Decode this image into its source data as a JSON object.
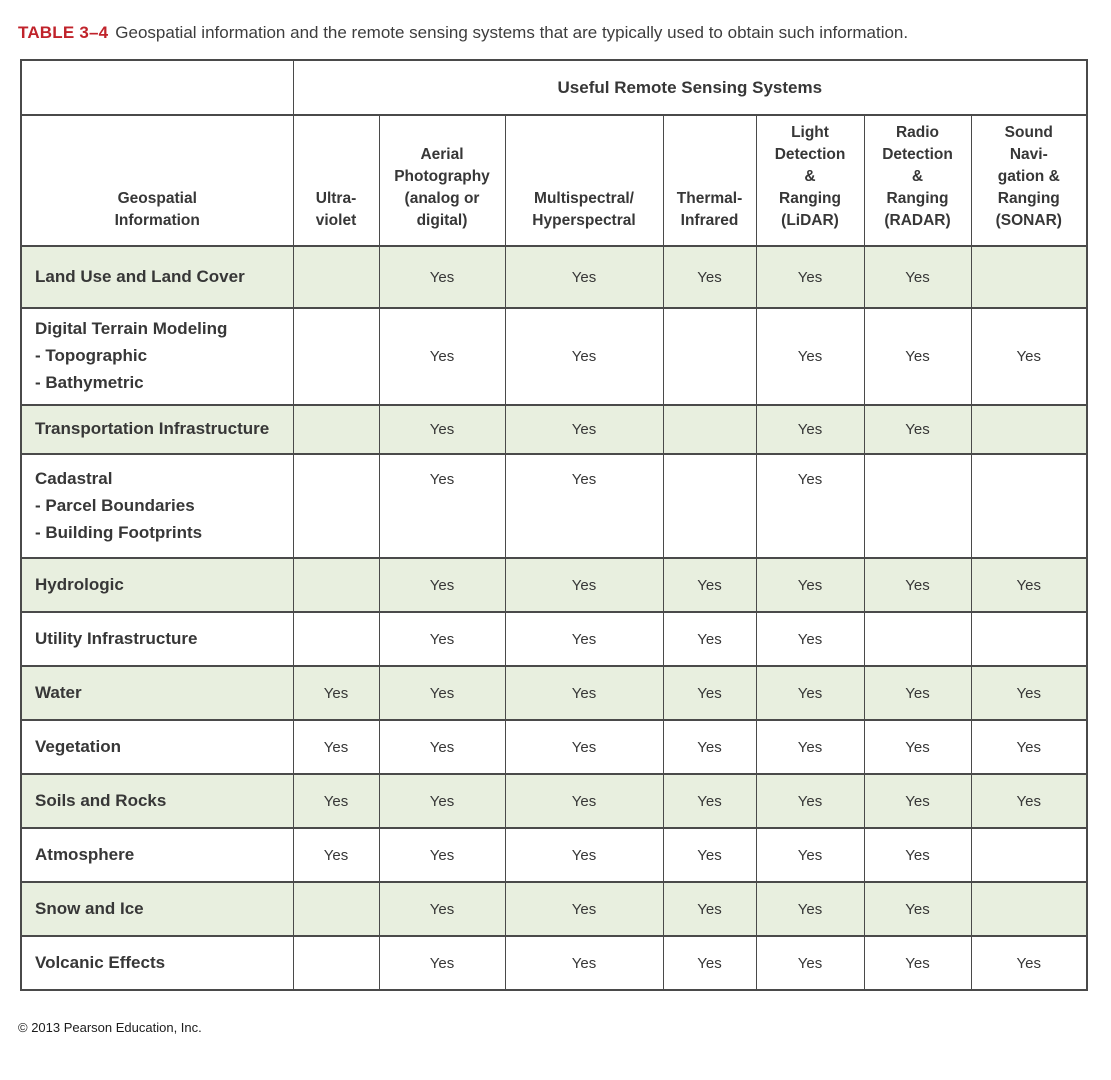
{
  "caption": {
    "label": "TABLE 3–4",
    "text": "Geospatial information and the remote sensing systems that are typically used to obtain such information."
  },
  "table": {
    "group_header": "Useful Remote Sensing Systems",
    "columns": [
      "Geospatial\nInformation",
      "Ultra-\nviolet",
      "Aerial\nPhotography\n(analog or\ndigital)",
      "Multispectral/\nHyperspectral",
      "Thermal-\nInfrared",
      "Light\nDetection\n&\nRanging\n(LiDAR)",
      "Radio\nDetection\n&\nRanging\n(RADAR)",
      "Sound\nNavi-\ngation &\nRanging\n(SONAR)"
    ],
    "rows": [
      {
        "label": "Land Use and Land Cover",
        "shaded": true,
        "values": [
          "",
          "Yes",
          "Yes",
          "Yes",
          "Yes",
          "Yes",
          ""
        ]
      },
      {
        "label": "Digital Terrain Modeling\n- Topographic\n- Bathymetric",
        "shaded": false,
        "values": [
          "",
          "Yes",
          "Yes",
          "",
          "Yes",
          "Yes",
          "Yes"
        ]
      },
      {
        "label": "Transportation Infrastructure",
        "shaded": true,
        "values": [
          "",
          "Yes",
          "Yes",
          "",
          "Yes",
          "Yes",
          ""
        ]
      },
      {
        "label": "Cadastral\n- Parcel Boundaries\n- Building Footprints",
        "shaded": false,
        "values_align_top": true,
        "values": [
          "",
          "Yes",
          "Yes",
          "",
          "Yes",
          "",
          ""
        ]
      },
      {
        "label": "Hydrologic",
        "shaded": true,
        "values": [
          "",
          "Yes",
          "Yes",
          "Yes",
          "Yes",
          "Yes",
          "Yes"
        ]
      },
      {
        "label": "Utility Infrastructure",
        "shaded": false,
        "values": [
          "",
          "Yes",
          "Yes",
          "Yes",
          "Yes",
          "",
          ""
        ]
      },
      {
        "label": "Water",
        "shaded": true,
        "values": [
          "Yes",
          "Yes",
          "Yes",
          "Yes",
          "Yes",
          "Yes",
          "Yes"
        ]
      },
      {
        "label": "Vegetation",
        "shaded": false,
        "values": [
          "Yes",
          "Yes",
          "Yes",
          "Yes",
          "Yes",
          "Yes",
          "Yes"
        ]
      },
      {
        "label": "Soils and Rocks",
        "shaded": true,
        "values": [
          "Yes",
          "Yes",
          "Yes",
          "Yes",
          "Yes",
          "Yes",
          "Yes"
        ]
      },
      {
        "label": "Atmosphere",
        "shaded": false,
        "values": [
          "Yes",
          "Yes",
          "Yes",
          "Yes",
          "Yes",
          "Yes",
          ""
        ]
      },
      {
        "label": "Snow and Ice",
        "shaded": true,
        "values": [
          "",
          "Yes",
          "Yes",
          "Yes",
          "Yes",
          "Yes",
          ""
        ]
      },
      {
        "label": "Volcanic Effects",
        "shaded": false,
        "values": [
          "",
          "Yes",
          "Yes",
          "Yes",
          "Yes",
          "Yes",
          "Yes"
        ]
      }
    ]
  },
  "footer": {
    "copyright": "© 2013 Pearson Education, Inc."
  },
  "colors": {
    "row_shade": "#e8efdf",
    "caption_red": "#c0232b",
    "border": "#4a4a4a",
    "text": "#373737"
  }
}
